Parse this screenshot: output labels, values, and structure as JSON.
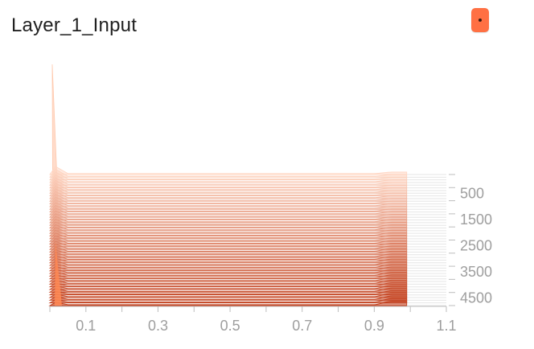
{
  "card": {
    "title": "Layer_1_Input"
  },
  "colors": {
    "accent": "#ff7043",
    "axis": "#bdbdbd",
    "tick_text": "#9e9e9e",
    "fill_old": "#ffd7c4",
    "fill_new": "#c13b17"
  },
  "icons": {
    "expand": "expand-dot-icon"
  },
  "chart_data": {
    "type": "histogram-offset",
    "title": "Layer_1_Input",
    "xlim": [
      0.0,
      1.1
    ],
    "x_ticks": [
      "0.1",
      "0.3",
      "0.5",
      "0.7",
      "0.9",
      "1.1"
    ],
    "y_ticks": [
      "500",
      "1500",
      "2500",
      "3500",
      "4500"
    ],
    "step_range": [
      0,
      5000
    ],
    "num_series": 50,
    "value_range": [
      0.05,
      0.99
    ],
    "start_spike": {
      "x": 0.02,
      "count_relative": 1.0
    },
    "bulk_region": [
      0.05,
      0.9
    ],
    "end_peak": {
      "x": 0.95,
      "count_relative": 0.08
    }
  }
}
